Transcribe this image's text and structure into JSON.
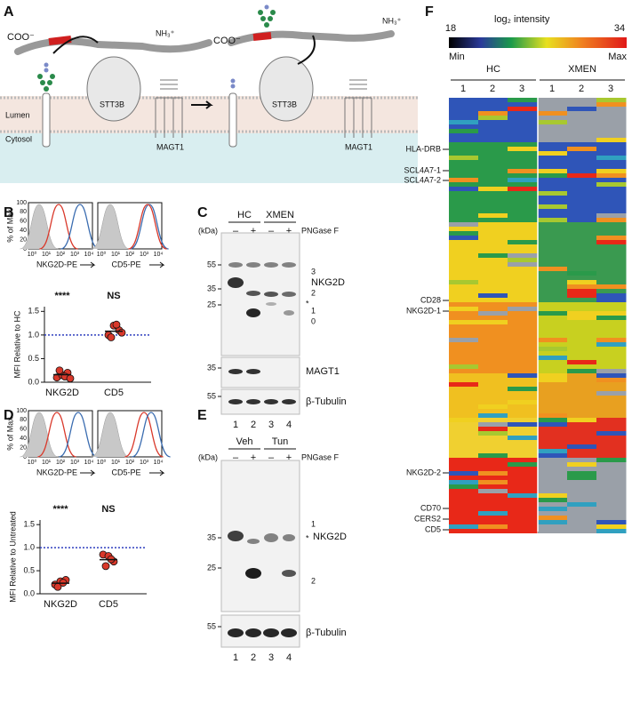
{
  "panel_a": {
    "letter": "A",
    "terminal_c": [
      "COO⁻",
      "COO⁻"
    ],
    "terminal_n": [
      "NH₃⁺",
      "NH₃⁺"
    ],
    "lumen": "Lumen",
    "cytosol": "Cytosol",
    "stt3b": [
      "STT3B",
      "STT3B"
    ],
    "magt1": [
      "MAGT1",
      "MAGT1"
    ]
  },
  "panel_b": {
    "letter": "B",
    "hist_ylabel": "% of Max",
    "hist_yticks": [
      "100",
      "80",
      "60",
      "40",
      "20",
      "0"
    ],
    "hist_xticks": [
      "10⁰",
      "10¹",
      "10²",
      "10³",
      "10⁴"
    ],
    "hist_xlabels": [
      "NKG2D-PE",
      "CD5-PE"
    ]
  },
  "panel_c": {
    "letter": "C",
    "groups": [
      "HC",
      "XMEN"
    ],
    "treatment": [
      "–",
      "+",
      "–",
      "+"
    ],
    "treatment_label": "PNGase F",
    "kda": "(kDa)",
    "markers_top": [
      "55",
      "35",
      "25"
    ],
    "band_labels": [
      "3",
      "2",
      "*",
      "1",
      "0"
    ],
    "protein": "NKG2D",
    "markers_mid": [
      "35"
    ],
    "protein_mid": "MAGT1",
    "markers_bottom": [
      "55"
    ],
    "protein_bottom": "β-Tubulin",
    "lanes": [
      "1",
      "2",
      "3",
      "4"
    ]
  },
  "panel_d": {
    "letter": "D",
    "hist_ylabel": "% of Max",
    "hist_yticks": [
      "100",
      "80",
      "60",
      "40",
      "20",
      "0"
    ],
    "hist_xticks": [
      "10⁰",
      "10¹",
      "10²",
      "10³",
      "10⁴"
    ],
    "hist_xlabels": [
      "NKG2D-PE",
      "CD5-PE"
    ]
  },
  "panel_e": {
    "letter": "E",
    "groups": [
      "Veh",
      "Tun"
    ],
    "treatment": [
      "–",
      "+",
      "–",
      "+"
    ],
    "treatment_label": "PNGase F",
    "kda": "(kDa)",
    "markers_top": [
      "35",
      "25"
    ],
    "band_labels": [
      "1",
      "*",
      "2"
    ],
    "protein": "NKG2D",
    "markers_bottom": [
      "55"
    ],
    "protein_bottom": "β-Tubulin",
    "lanes": [
      "1",
      "2",
      "3",
      "4"
    ]
  },
  "panel_f": {
    "letter": "F",
    "scale_title": "log₂ intensity",
    "scale_min": "18",
    "scale_max": "34",
    "min_label": "Min",
    "max_label": "Max",
    "groups": [
      "HC",
      "XMEN"
    ],
    "columns": [
      "1",
      "2",
      "3",
      "1",
      "2",
      "3"
    ],
    "row_labels": [
      "HLA-DRB",
      "SCL4A7-1",
      "SCL4A7-2",
      "CD28",
      "NKG2D-1",
      "NKG2D-2",
      "CD70",
      "CERS2",
      "CD5"
    ]
  },
  "chart_data": [
    {
      "type": "dot",
      "ylabel": "MFI Relative to HC",
      "categories": [
        "NKG2D",
        "CD5"
      ],
      "groups": [
        {
          "values": [
            0.1,
            0.15,
            0.2,
            0.25,
            0.12,
            0.08
          ]
        },
        {
          "values": [
            1.0,
            1.2,
            1.1,
            0.95,
            1.22,
            1.05
          ]
        }
      ],
      "means": [
        0.16,
        1.08
      ],
      "annotations": [
        "****",
        "NS"
      ],
      "reference": 1.0,
      "color": "#d9382a",
      "ylim": [
        0,
        1.6
      ],
      "yticks": [
        {
          "value": 0,
          "label": "0.0"
        },
        0.5,
        {
          "value": 1,
          "label": "1.0"
        },
        1.5
      ]
    },
    {
      "type": "dot",
      "ylabel": "MFI Relative to Untreated",
      "categories": [
        "NKG2D",
        "CD5"
      ],
      "groups": [
        {
          "values": [
            0.2,
            0.27,
            0.3,
            0.15,
            0.24
          ]
        },
        {
          "values": [
            0.85,
            0.82,
            0.7,
            0.6,
            0.75
          ]
        }
      ],
      "means": [
        0.23,
        0.74
      ],
      "annotations": [
        "****",
        "NS"
      ],
      "reference": 1.0,
      "color": "#d9382a",
      "ylim": [
        0,
        1.6
      ],
      "yticks": [
        {
          "value": 0,
          "label": "0.0"
        },
        0.5,
        {
          "value": 1,
          "label": "1.0"
        },
        1.5
      ]
    }
  ]
}
